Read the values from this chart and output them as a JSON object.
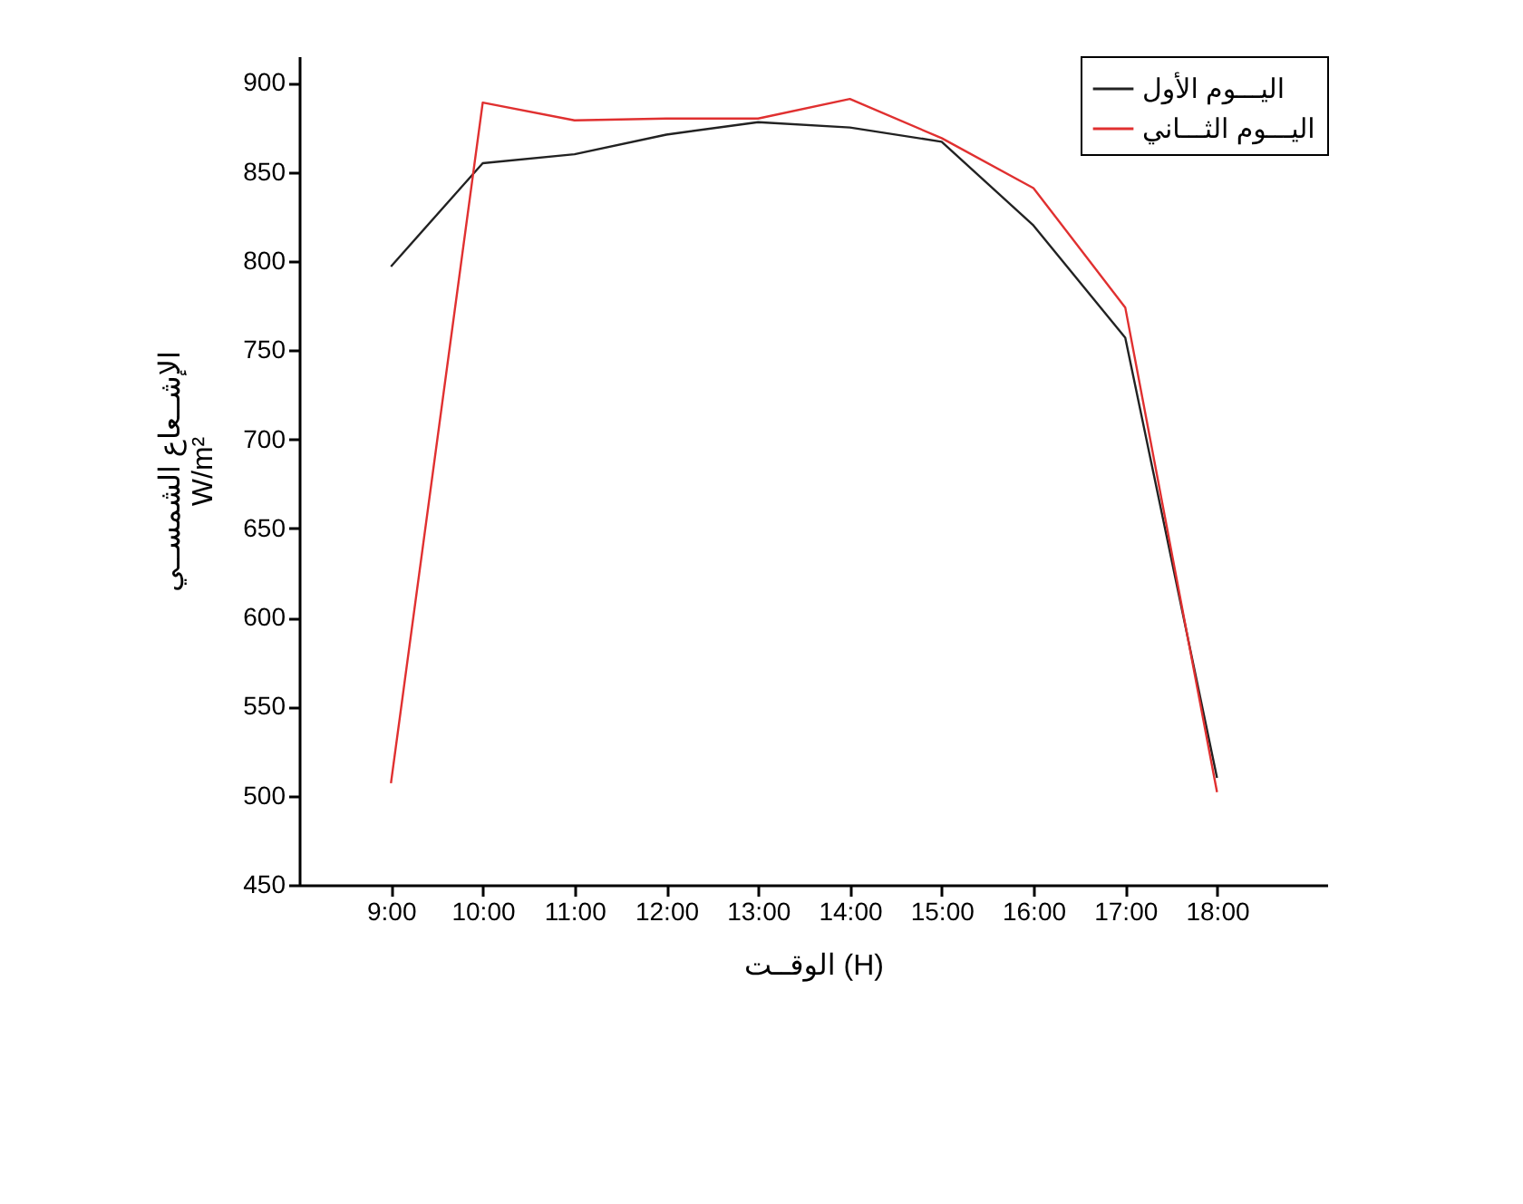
{
  "chart_data": {
    "type": "line",
    "xlabel": "الوقــت (H)",
    "ylabel": "الإشــعاع الشمســي\nW/m²",
    "x": [
      9,
      10,
      11,
      12,
      13,
      14,
      15,
      16,
      17,
      18
    ],
    "xlim": [
      8,
      19.2
    ],
    "xticks": [
      {
        "value": 9,
        "label": "9:00"
      },
      {
        "value": 10,
        "label": "10:00"
      },
      {
        "value": 11,
        "label": "11:00"
      },
      {
        "value": 12,
        "label": "12:00"
      },
      {
        "value": 13,
        "label": "13:00"
      },
      {
        "value": 14,
        "label": "14:00"
      },
      {
        "value": 15,
        "label": "15:00"
      },
      {
        "value": 16,
        "label": "16:00"
      },
      {
        "value": 17,
        "label": "17:00"
      },
      {
        "value": 18,
        "label": "18:00"
      }
    ],
    "ylim": [
      450,
      915
    ],
    "yticks": [
      450,
      500,
      550,
      600,
      650,
      700,
      750,
      800,
      850,
      900
    ],
    "series": [
      {
        "name": "اليـــوم الأول",
        "color": "#222222",
        "values": [
          797,
          855,
          860,
          871,
          878,
          875,
          867,
          820,
          757,
          510
        ]
      },
      {
        "name": "اليـــوم الثـــاني",
        "color": "#e03030",
        "values": [
          507,
          889,
          879,
          880,
          880,
          891,
          869,
          841,
          774,
          502
        ]
      }
    ],
    "legend": "top right",
    "grid": false,
    "line_style": "solid"
  }
}
